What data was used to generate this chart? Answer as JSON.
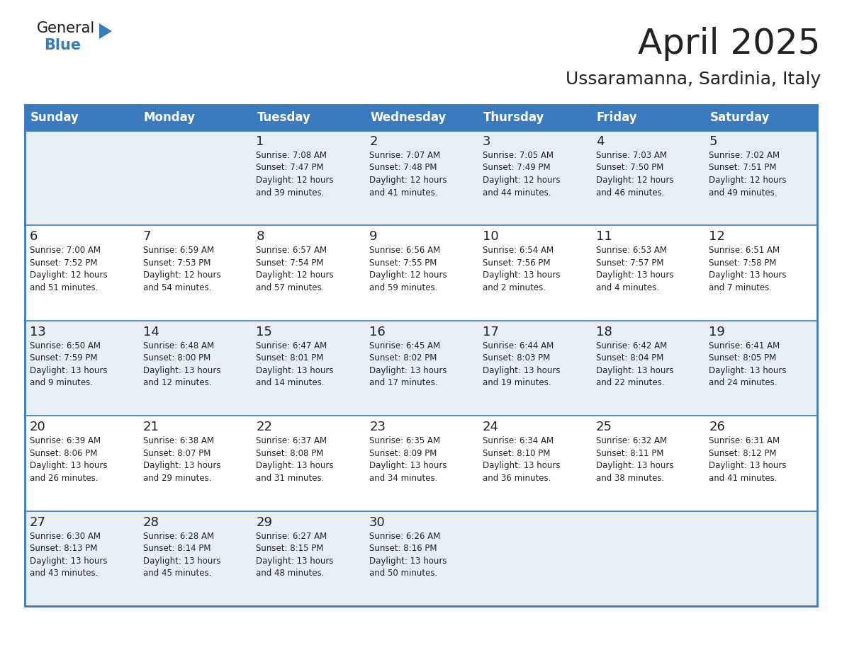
{
  "title": "April 2025",
  "subtitle": "Ussaramanna, Sardinia, Italy",
  "header_bg": "#3a7abf",
  "header_text_color": "#ffffff",
  "cell_bg_light": "#e8eef5",
  "cell_bg_white": "#ffffff",
  "border_color": "#3a7abf",
  "text_color": "#222222",
  "day_names": [
    "Sunday",
    "Monday",
    "Tuesday",
    "Wednesday",
    "Thursday",
    "Friday",
    "Saturday"
  ],
  "weeks": [
    [
      {
        "day": "",
        "info": ""
      },
      {
        "day": "",
        "info": ""
      },
      {
        "day": "1",
        "info": "Sunrise: 7:08 AM\nSunset: 7:47 PM\nDaylight: 12 hours\nand 39 minutes."
      },
      {
        "day": "2",
        "info": "Sunrise: 7:07 AM\nSunset: 7:48 PM\nDaylight: 12 hours\nand 41 minutes."
      },
      {
        "day": "3",
        "info": "Sunrise: 7:05 AM\nSunset: 7:49 PM\nDaylight: 12 hours\nand 44 minutes."
      },
      {
        "day": "4",
        "info": "Sunrise: 7:03 AM\nSunset: 7:50 PM\nDaylight: 12 hours\nand 46 minutes."
      },
      {
        "day": "5",
        "info": "Sunrise: 7:02 AM\nSunset: 7:51 PM\nDaylight: 12 hours\nand 49 minutes."
      }
    ],
    [
      {
        "day": "6",
        "info": "Sunrise: 7:00 AM\nSunset: 7:52 PM\nDaylight: 12 hours\nand 51 minutes."
      },
      {
        "day": "7",
        "info": "Sunrise: 6:59 AM\nSunset: 7:53 PM\nDaylight: 12 hours\nand 54 minutes."
      },
      {
        "day": "8",
        "info": "Sunrise: 6:57 AM\nSunset: 7:54 PM\nDaylight: 12 hours\nand 57 minutes."
      },
      {
        "day": "9",
        "info": "Sunrise: 6:56 AM\nSunset: 7:55 PM\nDaylight: 12 hours\nand 59 minutes."
      },
      {
        "day": "10",
        "info": "Sunrise: 6:54 AM\nSunset: 7:56 PM\nDaylight: 13 hours\nand 2 minutes."
      },
      {
        "day": "11",
        "info": "Sunrise: 6:53 AM\nSunset: 7:57 PM\nDaylight: 13 hours\nand 4 minutes."
      },
      {
        "day": "12",
        "info": "Sunrise: 6:51 AM\nSunset: 7:58 PM\nDaylight: 13 hours\nand 7 minutes."
      }
    ],
    [
      {
        "day": "13",
        "info": "Sunrise: 6:50 AM\nSunset: 7:59 PM\nDaylight: 13 hours\nand 9 minutes."
      },
      {
        "day": "14",
        "info": "Sunrise: 6:48 AM\nSunset: 8:00 PM\nDaylight: 13 hours\nand 12 minutes."
      },
      {
        "day": "15",
        "info": "Sunrise: 6:47 AM\nSunset: 8:01 PM\nDaylight: 13 hours\nand 14 minutes."
      },
      {
        "day": "16",
        "info": "Sunrise: 6:45 AM\nSunset: 8:02 PM\nDaylight: 13 hours\nand 17 minutes."
      },
      {
        "day": "17",
        "info": "Sunrise: 6:44 AM\nSunset: 8:03 PM\nDaylight: 13 hours\nand 19 minutes."
      },
      {
        "day": "18",
        "info": "Sunrise: 6:42 AM\nSunset: 8:04 PM\nDaylight: 13 hours\nand 22 minutes."
      },
      {
        "day": "19",
        "info": "Sunrise: 6:41 AM\nSunset: 8:05 PM\nDaylight: 13 hours\nand 24 minutes."
      }
    ],
    [
      {
        "day": "20",
        "info": "Sunrise: 6:39 AM\nSunset: 8:06 PM\nDaylight: 13 hours\nand 26 minutes."
      },
      {
        "day": "21",
        "info": "Sunrise: 6:38 AM\nSunset: 8:07 PM\nDaylight: 13 hours\nand 29 minutes."
      },
      {
        "day": "22",
        "info": "Sunrise: 6:37 AM\nSunset: 8:08 PM\nDaylight: 13 hours\nand 31 minutes."
      },
      {
        "day": "23",
        "info": "Sunrise: 6:35 AM\nSunset: 8:09 PM\nDaylight: 13 hours\nand 34 minutes."
      },
      {
        "day": "24",
        "info": "Sunrise: 6:34 AM\nSunset: 8:10 PM\nDaylight: 13 hours\nand 36 minutes."
      },
      {
        "day": "25",
        "info": "Sunrise: 6:32 AM\nSunset: 8:11 PM\nDaylight: 13 hours\nand 38 minutes."
      },
      {
        "day": "26",
        "info": "Sunrise: 6:31 AM\nSunset: 8:12 PM\nDaylight: 13 hours\nand 41 minutes."
      }
    ],
    [
      {
        "day": "27",
        "info": "Sunrise: 6:30 AM\nSunset: 8:13 PM\nDaylight: 13 hours\nand 43 minutes."
      },
      {
        "day": "28",
        "info": "Sunrise: 6:28 AM\nSunset: 8:14 PM\nDaylight: 13 hours\nand 45 minutes."
      },
      {
        "day": "29",
        "info": "Sunrise: 6:27 AM\nSunset: 8:15 PM\nDaylight: 13 hours\nand 48 minutes."
      },
      {
        "day": "30",
        "info": "Sunrise: 6:26 AM\nSunset: 8:16 PM\nDaylight: 13 hours\nand 50 minutes."
      },
      {
        "day": "",
        "info": ""
      },
      {
        "day": "",
        "info": ""
      },
      {
        "day": "",
        "info": ""
      }
    ]
  ],
  "fig_width": 11.88,
  "fig_height": 9.18,
  "logo_text1": "General",
  "logo_text2": "Blue",
  "logo_color1": "#1a1a1a",
  "logo_color2": "#3a7abf",
  "logo_triangle_color": "#3a7abf",
  "header_fontsize": 12,
  "day_num_fontsize": 13,
  "info_fontsize": 8.5,
  "title_fontsize": 36,
  "subtitle_fontsize": 18
}
